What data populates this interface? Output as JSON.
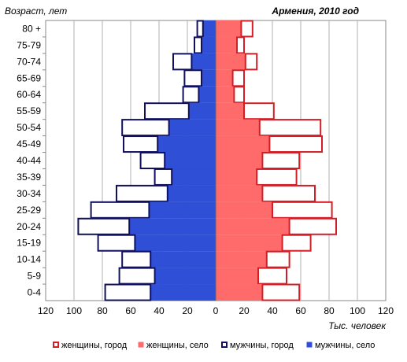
{
  "chart_data": {
    "type": "bar",
    "orientation": "horizontal-population-pyramid",
    "title": "Армения, 2010 год",
    "ylabel": "Возраст, лет",
    "xlabel": "Тыс. человек",
    "categories": [
      "80 +",
      "75-79",
      "70-74",
      "65-69",
      "60-64",
      "55-59",
      "50-54",
      "45-49",
      "40-44",
      "35-39",
      "30-34",
      "25-29",
      "20-24",
      "15-19",
      "10-14",
      "5-9",
      "0-4"
    ],
    "x_ticks": [
      "120",
      "100",
      "80",
      "60",
      "40",
      "20",
      "0",
      "20",
      "40",
      "60",
      "80",
      "100",
      "120"
    ],
    "xlim": [
      -120,
      120
    ],
    "grid": true,
    "legend_position": "bottom",
    "colors": {
      "women_urban": "#d21e26",
      "women_rural": "#ff6b6b",
      "men_urban": "#10105e",
      "men_rural": "#2f4fd6"
    },
    "series": [
      {
        "name": "женщины, город",
        "side": "right",
        "values": [
          8,
          5,
          8,
          8,
          7,
          21,
          43,
          37,
          26,
          28,
          37,
          42,
          33,
          20,
          16,
          20,
          26
        ]
      },
      {
        "name": "женщины, село",
        "side": "right",
        "values": [
          18,
          15,
          21,
          12,
          13,
          20,
          31,
          38,
          33,
          29,
          33,
          40,
          52,
          47,
          36,
          30,
          33
        ]
      },
      {
        "name": "мужчины, город",
        "side": "left",
        "values": [
          4,
          5,
          13,
          12,
          11,
          31,
          33,
          24,
          17,
          12,
          36,
          41,
          36,
          26,
          20,
          25,
          32
        ]
      },
      {
        "name": "мужчины, село",
        "side": "left",
        "values": [
          9,
          10,
          17,
          10,
          12,
          19,
          33,
          41,
          36,
          31,
          34,
          47,
          61,
          57,
          46,
          43,
          46
        ]
      }
    ]
  }
}
